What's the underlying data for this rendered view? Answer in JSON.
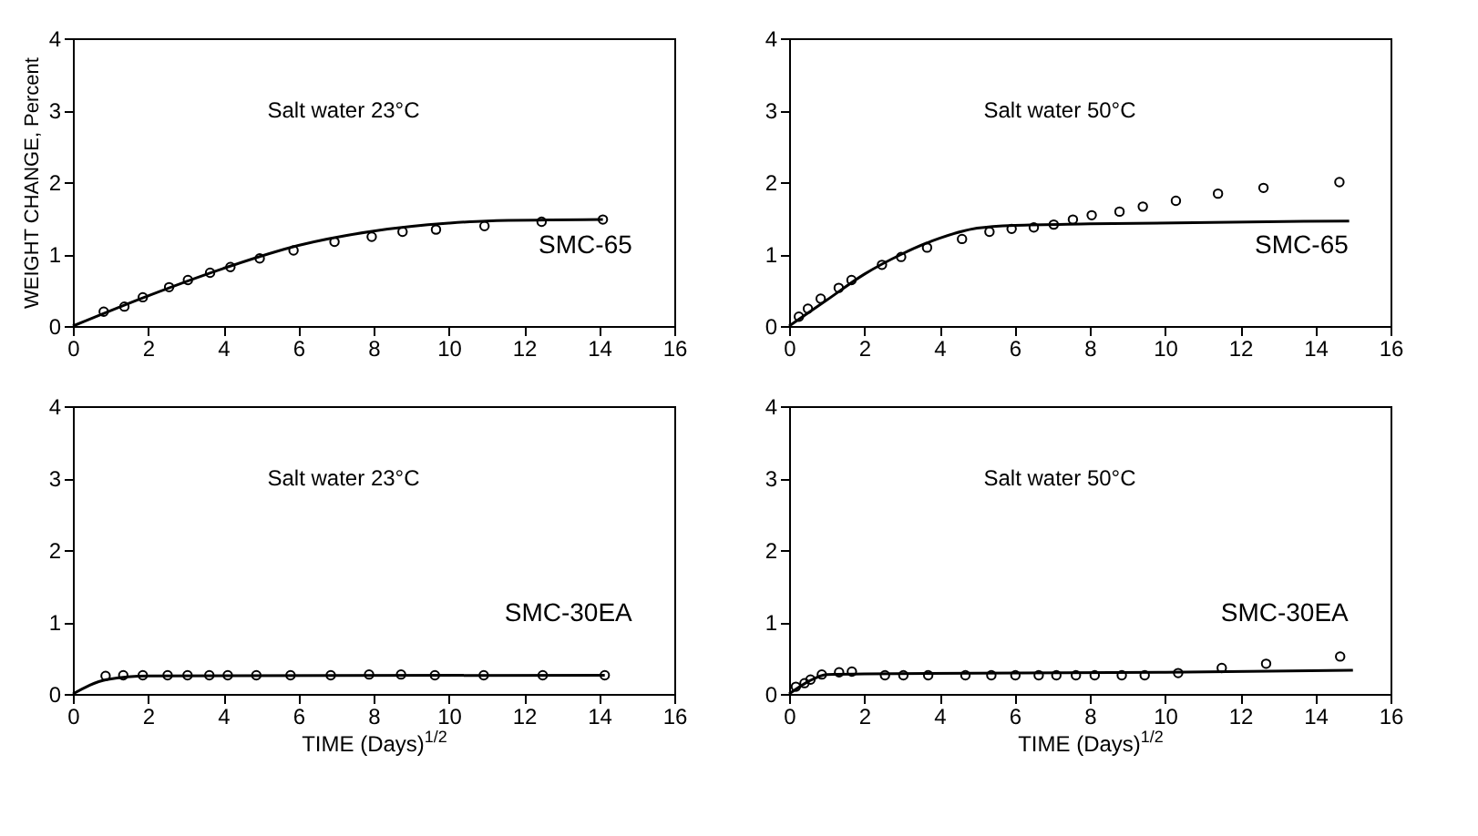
{
  "chart_data": [
    {
      "type": "scatter",
      "ylabel": "WEIGHT CHANGE, Percent",
      "annotations": [
        "Salt water 23°C",
        "SMC-65"
      ],
      "xlim": [
        0,
        16
      ],
      "xticks": [
        0,
        2,
        4,
        6,
        8,
        10,
        12,
        14,
        16
      ],
      "ylim": [
        0,
        4
      ],
      "yticks": [
        0,
        1,
        2,
        3,
        4
      ],
      "series": [
        {
          "marker": "circle",
          "color": "#000000",
          "x": [
            0.82,
            1.37,
            1.86,
            2.56,
            3.06,
            3.65,
            4.19,
            4.97,
            5.87,
            6.96,
            7.95,
            8.77,
            9.66,
            10.95,
            12.47,
            14.1
          ],
          "values": [
            0.2,
            0.27,
            0.4,
            0.54,
            0.64,
            0.74,
            0.82,
            0.94,
            1.05,
            1.17,
            1.24,
            1.31,
            1.34,
            1.39,
            1.45,
            1.48
          ]
        },
        {
          "type": "line",
          "color": "#000000",
          "x": [
            0,
            2,
            4,
            6,
            8,
            10,
            11,
            14.1
          ],
          "values": [
            0,
            0.42,
            0.8,
            1.12,
            1.32,
            1.43,
            1.46,
            1.48
          ]
        }
      ]
    },
    {
      "type": "scatter",
      "annotations": [
        "Salt water 50°C",
        "SMC-65"
      ],
      "xlim": [
        0,
        16
      ],
      "xticks": [
        0,
        2,
        4,
        6,
        8,
        10,
        12,
        14,
        16
      ],
      "ylim": [
        0,
        4
      ],
      "yticks": [
        0,
        1,
        2,
        3,
        4
      ],
      "series": [
        {
          "marker": "circle",
          "color": "#000000",
          "x": [
            0.26,
            0.5,
            0.84,
            1.32,
            1.66,
            2.47,
            2.98,
            3.67,
            4.6,
            5.33,
            5.92,
            6.51,
            7.04,
            7.55,
            8.05,
            8.79,
            9.41,
            10.29,
            11.41,
            12.62,
            14.64
          ],
          "values": [
            0.13,
            0.24,
            0.38,
            0.53,
            0.64,
            0.85,
            0.96,
            1.09,
            1.21,
            1.31,
            1.35,
            1.37,
            1.41,
            1.48,
            1.54,
            1.59,
            1.66,
            1.74,
            1.84,
            1.92,
            2.0
          ]
        },
        {
          "type": "line",
          "color": "#000000",
          "x": [
            0,
            1,
            2,
            3,
            4,
            5,
            6,
            8,
            14.9
          ],
          "values": [
            0,
            0.36,
            0.72,
            1.0,
            1.22,
            1.36,
            1.4,
            1.42,
            1.46
          ]
        }
      ]
    },
    {
      "type": "scatter",
      "xlabel": "TIME (Days)$^{1/2}$",
      "annotations": [
        "Salt water 23°C",
        "SMC-30EA"
      ],
      "xlim": [
        0,
        16
      ],
      "xticks": [
        0,
        2,
        4,
        6,
        8,
        10,
        12,
        14,
        16
      ],
      "ylim": [
        0,
        4
      ],
      "yticks": [
        0,
        1,
        2,
        3,
        4
      ],
      "series": [
        {
          "marker": "circle",
          "color": "#000000",
          "x": [
            0.87,
            1.34,
            1.86,
            2.52,
            3.05,
            3.63,
            4.12,
            4.88,
            5.79,
            6.86,
            7.88,
            8.73,
            9.63,
            10.93,
            12.5,
            14.15
          ],
          "values": [
            0.25,
            0.26,
            0.26,
            0.26,
            0.26,
            0.26,
            0.26,
            0.26,
            0.26,
            0.26,
            0.27,
            0.27,
            0.26,
            0.26,
            0.26,
            0.26
          ]
        },
        {
          "type": "line",
          "color": "#000000",
          "x": [
            0,
            0.9,
            2,
            14.15
          ],
          "values": [
            0,
            0.2,
            0.25,
            0.26
          ]
        }
      ]
    },
    {
      "type": "scatter",
      "xlabel": "TIME (Days)$^{1/2}$",
      "annotations": [
        "Salt water 50°C",
        "SMC-30EA"
      ],
      "xlim": [
        0,
        16
      ],
      "xticks": [
        0,
        2,
        4,
        6,
        8,
        10,
        12,
        14,
        16
      ],
      "ylim": [
        0,
        4
      ],
      "yticks": [
        0,
        1,
        2,
        3,
        4
      ],
      "series": [
        {
          "marker": "circle",
          "color": "#000000",
          "x": [
            0.18,
            0.41,
            0.57,
            0.87,
            1.33,
            1.67,
            2.55,
            3.04,
            3.7,
            4.69,
            5.38,
            6.02,
            6.64,
            7.11,
            7.63,
            8.13,
            8.85,
            9.46,
            10.35,
            11.51,
            12.69,
            14.66
          ],
          "values": [
            0.1,
            0.15,
            0.2,
            0.27,
            0.3,
            0.31,
            0.26,
            0.26,
            0.26,
            0.26,
            0.26,
            0.26,
            0.26,
            0.26,
            0.26,
            0.26,
            0.26,
            0.26,
            0.29,
            0.36,
            0.42,
            0.52
          ]
        },
        {
          "type": "line",
          "color": "#000000",
          "x": [
            0,
            0.5,
            1,
            2,
            10,
            15
          ],
          "values": [
            0,
            0.17,
            0.27,
            0.28,
            0.3,
            0.33
          ]
        }
      ]
    }
  ]
}
